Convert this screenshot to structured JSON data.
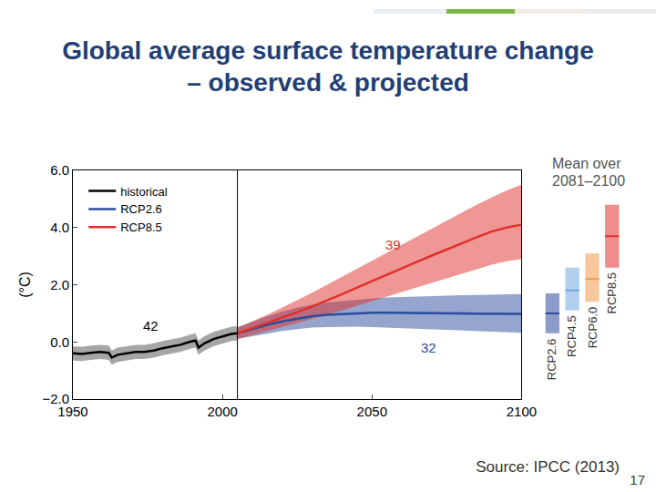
{
  "chart_data": {
    "type": "line",
    "title": "Global average surface temperature change – observed & projected",
    "y_label": "(°C)",
    "xlim": [
      1950,
      2100
    ],
    "xticks": [
      1950,
      2000,
      2050,
      2100
    ],
    "ylim": [
      -2,
      6
    ],
    "yticks": [
      {
        "value": -2,
        "label": "−2.0"
      },
      {
        "value": 0,
        "label": "0.0"
      },
      {
        "value": 2,
        "label": "2.0"
      },
      {
        "value": 4,
        "label": "4.0"
      },
      {
        "value": 6,
        "label": "6.0"
      }
    ],
    "grid": false,
    "legend": "top left",
    "reference_line_x": 2005,
    "series": [
      {
        "name": "historical",
        "color": "#000000",
        "x": [
          1950,
          1953,
          1956,
          1959,
          1962,
          1963,
          1965,
          1968,
          1971,
          1974,
          1977,
          1980,
          1983,
          1986,
          1989,
          1991,
          1992,
          1994,
          1997,
          2000,
          2003,
          2005
        ],
        "values": [
          -0.4,
          -0.42,
          -0.38,
          -0.35,
          -0.38,
          -0.55,
          -0.45,
          -0.4,
          -0.35,
          -0.35,
          -0.3,
          -0.22,
          -0.15,
          -0.1,
          0.0,
          0.05,
          -0.2,
          -0.05,
          0.1,
          0.2,
          0.28,
          0.3
        ],
        "lower": [
          -0.65,
          -0.67,
          -0.63,
          -0.6,
          -0.63,
          -0.8,
          -0.7,
          -0.65,
          -0.6,
          -0.6,
          -0.55,
          -0.47,
          -0.4,
          -0.35,
          -0.25,
          -0.2,
          -0.45,
          -0.3,
          -0.15,
          -0.05,
          0.03,
          0.05
        ],
        "upper": [
          -0.15,
          -0.17,
          -0.13,
          -0.1,
          -0.13,
          -0.3,
          -0.2,
          -0.15,
          -0.1,
          -0.1,
          -0.05,
          0.03,
          0.1,
          0.15,
          0.25,
          0.3,
          0.05,
          0.2,
          0.35,
          0.45,
          0.53,
          0.55
        ]
      },
      {
        "name": "RCP2.6",
        "color": "#2b4c9b",
        "x": [
          2005,
          2010,
          2015,
          2020,
          2025,
          2030,
          2035,
          2040,
          2045,
          2050,
          2055,
          2060,
          2065,
          2070,
          2075,
          2080,
          2085,
          2090,
          2095,
          2100
        ],
        "values": [
          0.3,
          0.45,
          0.6,
          0.72,
          0.82,
          0.9,
          0.95,
          0.98,
          1.0,
          1.02,
          1.02,
          1.02,
          1.01,
          1.0,
          1.0,
          1.0,
          0.99,
          0.98,
          0.98,
          0.98
        ],
        "lower": [
          0.1,
          0.2,
          0.3,
          0.38,
          0.45,
          0.5,
          0.52,
          0.53,
          0.53,
          0.52,
          0.5,
          0.48,
          0.46,
          0.44,
          0.42,
          0.4,
          0.38,
          0.36,
          0.34,
          0.32
        ],
        "upper": [
          0.5,
          0.7,
          0.9,
          1.06,
          1.2,
          1.3,
          1.38,
          1.43,
          1.48,
          1.52,
          1.55,
          1.57,
          1.59,
          1.6,
          1.62,
          1.63,
          1.64,
          1.65,
          1.66,
          1.67
        ]
      },
      {
        "name": "RCP8.5",
        "color": "#e0302a",
        "x": [
          2005,
          2010,
          2015,
          2020,
          2025,
          2030,
          2035,
          2040,
          2045,
          2050,
          2055,
          2060,
          2065,
          2070,
          2075,
          2080,
          2085,
          2090,
          2095,
          2100
        ],
        "values": [
          0.3,
          0.48,
          0.66,
          0.85,
          1.04,
          1.24,
          1.45,
          1.67,
          1.9,
          2.13,
          2.36,
          2.58,
          2.8,
          3.02,
          3.24,
          3.45,
          3.66,
          3.86,
          4.0,
          4.1
        ],
        "lower": [
          0.1,
          0.25,
          0.38,
          0.52,
          0.66,
          0.8,
          0.95,
          1.1,
          1.27,
          1.43,
          1.6,
          1.76,
          1.92,
          2.08,
          2.24,
          2.4,
          2.55,
          2.7,
          2.82,
          2.9
        ],
        "upper": [
          0.5,
          0.72,
          0.95,
          1.2,
          1.45,
          1.72,
          2.0,
          2.28,
          2.57,
          2.86,
          3.14,
          3.42,
          3.7,
          3.98,
          4.25,
          4.52,
          4.8,
          5.05,
          5.3,
          5.5
        ]
      }
    ],
    "annotations": [
      {
        "text": "42",
        "x": 1976,
        "y": 0.57,
        "color": "#000000"
      },
      {
        "text": "39",
        "x": 2057,
        "y": 3.4,
        "color": "#e0302a"
      },
      {
        "text": "32",
        "x": 2069,
        "y": -0.2,
        "color": "#2b4c9b"
      }
    ],
    "mean_panel": {
      "title": "Mean over 2081–2100",
      "categories": [
        "RCP2.6",
        "RCP4.5",
        "RCP6.0",
        "RCP8.5"
      ],
      "low": [
        0.3,
        1.1,
        1.4,
        2.6
      ],
      "high": [
        1.7,
        2.6,
        3.1,
        4.8
      ],
      "mean": [
        1.0,
        1.8,
        2.2,
        3.7
      ],
      "colors": [
        "#2b4c9b",
        "#6fa8dc",
        "#f29b4b",
        "#e0302a"
      ]
    },
    "source": "Source: IPCC (2013)",
    "page_number": 17
  }
}
